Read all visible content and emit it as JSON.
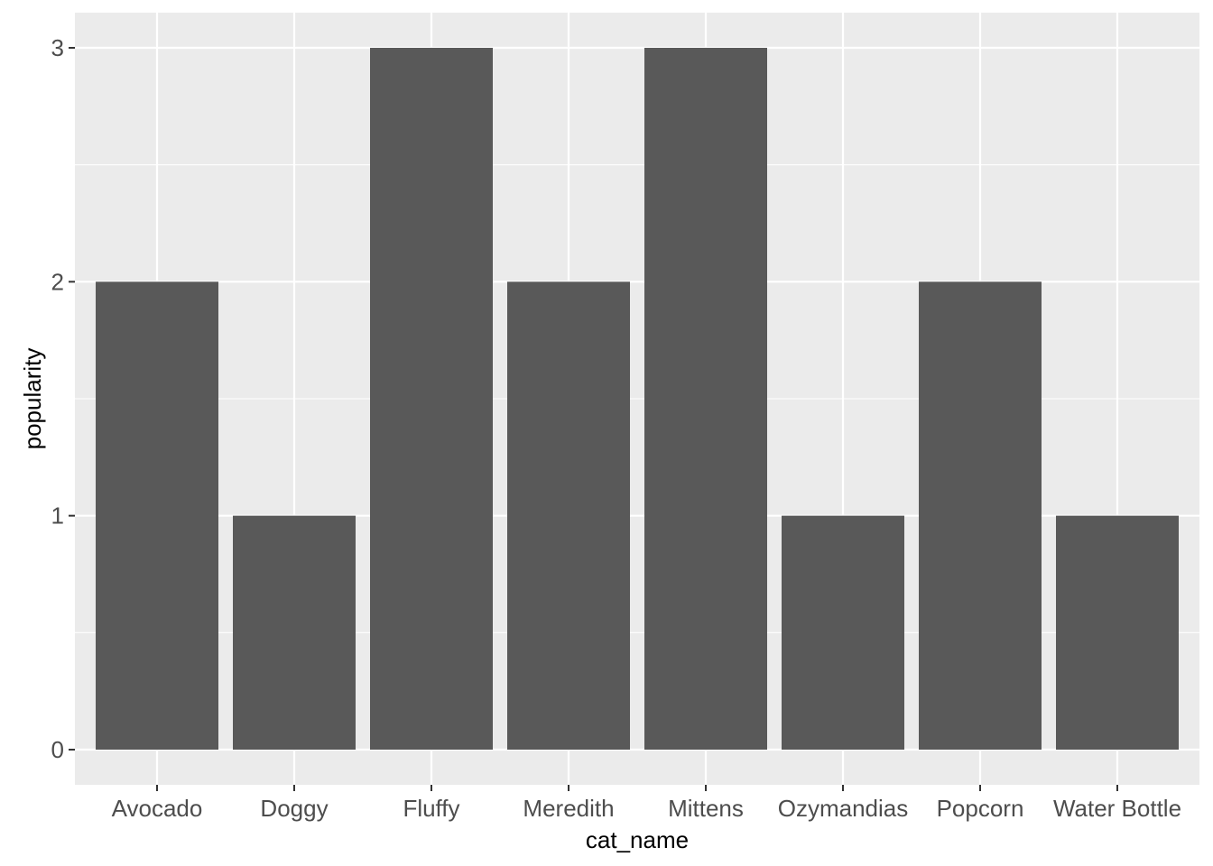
{
  "chart_data": {
    "type": "bar",
    "categories": [
      "Avocado",
      "Doggy",
      "Fluffy",
      "Meredith",
      "Mittens",
      "Ozymandias",
      "Popcorn",
      "Water Bottle"
    ],
    "values": [
      2,
      1,
      3,
      2,
      3,
      1,
      2,
      1
    ],
    "xlabel": "cat_name",
    "ylabel": "popularity",
    "ylim": [
      0,
      3
    ],
    "yticks": [
      "0",
      "1",
      "2",
      "3"
    ],
    "grid": true,
    "colors": {
      "bar": "#595959",
      "panel": "#ebebeb",
      "grid": "#ffffff"
    }
  }
}
